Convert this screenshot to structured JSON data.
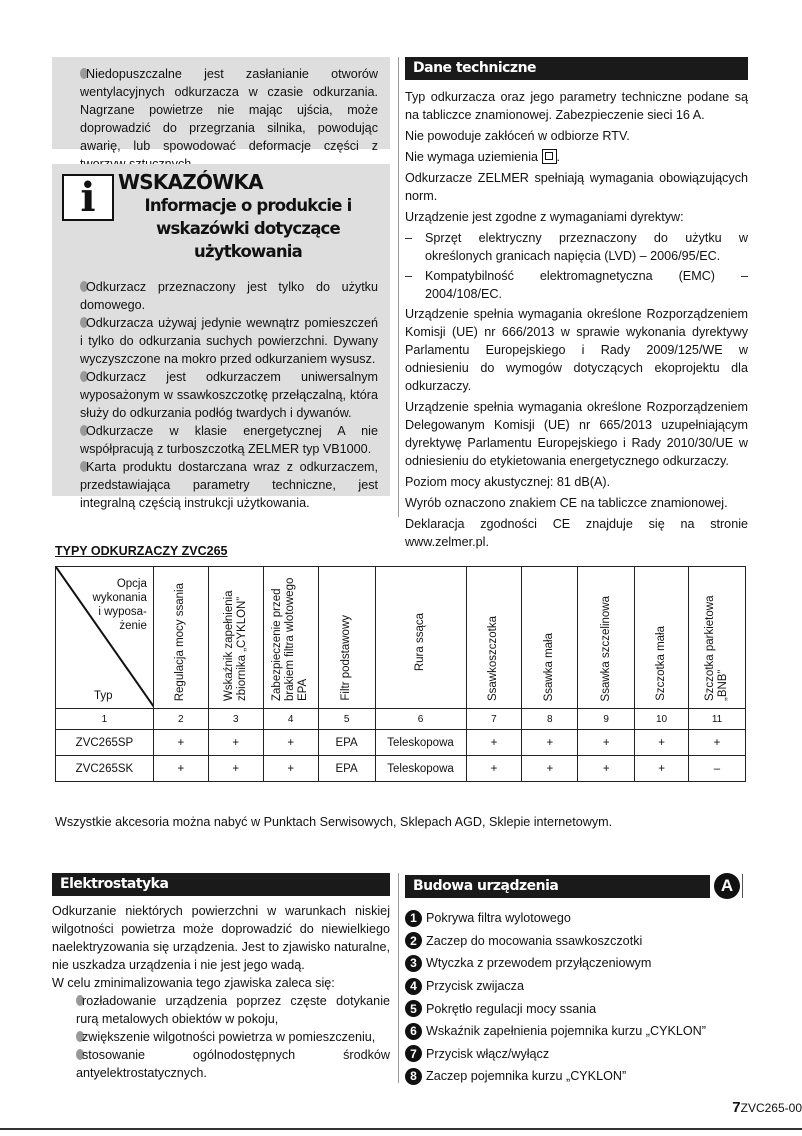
{
  "warning_box": {
    "text": "Niedopuszczalne jest zasłanianie otworów wentylacyjnych odkurzacza w czasie odkurzania. Nagrzane powietrze nie mając ujścia, może doprowadzić do przegrzania silnika, powodując awarię, lub spowodować deformacje części z tworzyw sztucznych."
  },
  "tip_box": {
    "icon_letter": "i",
    "title": "WSKAZÓWKA",
    "subtitle": "Informacje o produkcie i wskazówki dotyczące użytkowania",
    "items": [
      "Odkurzacz przeznaczony jest tylko do użytku domowego.",
      "Odkurzacza używaj jedynie wewnątrz pomieszczeń i tylko do odkurzania suchych powierzchni. Dywany wyczyszczone na mokro przed odkurzaniem wysusz.",
      "Odkurzacz jest odkurzaczem uniwersalnym wyposażonym w ssawkoszczotkę przełączalną, która służy do odkurzania podłóg twardych i dywanów.",
      "Odkurzacze w klasie energetycznej A nie współpracują z turboszczotką ZELMER typ VB1000.",
      "Karta produktu dostarczana wraz z odkurzaczem, przedstawiająca parametry techniczne, jest integralną częścią instrukcji użytkowania."
    ]
  },
  "tech": {
    "title": "Dane techniczne",
    "p1": "Typ odkurzacza oraz jego parametry techniczne podane są na tabliczce znamionowej. Zabezpieczenie sieci 16 A.",
    "p2": "Nie powoduje zakłóceń w odbiorze RTV.",
    "p3": "Nie wymaga uziemienia",
    "p4": "Odkurzacze ZELMER spełniają wymagania obowiązujących norm.",
    "p5": "Urządzenie jest zgodne z wymaganiami dyrektyw:",
    "list": [
      "Sprzęt elektryczny przeznaczony do użytku w określonych granicach napięcia (LVD) – 2006/95/EC.",
      "Kompatybilność elektromagnetyczna (EMC) – 2004/108/EC."
    ],
    "p6": "Urządzenie spełnia wymagania określone Rozporządzeniem Komisji (UE) nr 666/2013 w sprawie wykonania dyrektywy Parlamentu Europejskiego i Rady 2009/125/WE w odniesieniu do wymogów dotyczących ekoprojektu dla odkurzaczy.",
    "p7": "Urządzenie spełnia wymagania określone Rozporządzeniem Delegowanym Komisji (UE) nr 665/2013 uzupełniającym dyrektywę Parlamentu Europejskiego i Rady 2010/30/UE w odniesieniu do etykietowania energetycznego odkurzaczy.",
    "p8": "Poziom mocy akustycznej: 81 dB(A).",
    "p9": "Wyrób oznaczono znakiem CE na tabliczce znamionowej.",
    "p10": "Deklaracja zgodności CE znajduje się na stronie www.zelmer.pl."
  },
  "types": {
    "title": "TYPY ODKURZACZY ZVC265",
    "corner_top": "Opcja wykonania i wyposa-żenie",
    "corner_bottom": "Typ",
    "headers": [
      "Regulacja mocy ssania",
      "Wskaźnik zapełnienia zbiornika „CYKLON”",
      "Zabezpieczenie przed brakiem filtra wlotowego EPA",
      "Filtr podstawowy",
      "Rura ssąca",
      "Ssawkoszczotka",
      "Ssawka mała",
      "Ssawka szczelinowa",
      "Szczotka mała",
      "Szczotka parkietowa „BNB”"
    ],
    "numbers": [
      "1",
      "2",
      "3",
      "4",
      "5",
      "6",
      "7",
      "8",
      "9",
      "10",
      "11"
    ],
    "rows": [
      [
        "ZVC265SP",
        "+",
        "+",
        "+",
        "EPA",
        "Teleskopowa",
        "+",
        "+",
        "+",
        "+",
        "+"
      ],
      [
        "ZVC265SK",
        "+",
        "+",
        "+",
        "EPA",
        "Teleskopowa",
        "+",
        "+",
        "+",
        "+",
        "–"
      ]
    ],
    "note": "Wszystkie akcesoria można nabyć w Punktach Serwisowych, Sklepach AGD, Sklepie internetowym."
  },
  "electro": {
    "title": "Elektrostatyka",
    "p1": "Odkurzanie niektórych powierzchni w warunkach niskiej wilgotności powietrza może doprowadzić do niewielkiego naelektryzowania się urządzenia. Jest to zjawisko naturalne, nie uszkadza urządzenia i nie jest jego wadą.",
    "p2": "W celu zminimalizowania tego zjawiska zaleca się:",
    "items": [
      "rozładowanie urządzenia poprzez częste dotykanie rurą metalowych obiektów w pokoju,",
      "zwiększenie wilgotności powietrza w pomieszczeniu,",
      "stosowanie ogólnodostępnych środków antyelektrostatycznych."
    ]
  },
  "build": {
    "title": "Budowa urządzenia",
    "badge": "A",
    "items": [
      {
        "n": "1",
        "t": "Pokrywa filtra wylotowego"
      },
      {
        "n": "2",
        "t": "Zaczep do mocowania ssawkoszczotki"
      },
      {
        "n": "3",
        "t": "Wtyczka z przewodem przyłączeniowym"
      },
      {
        "n": "4",
        "t": "Przycisk zwijacza"
      },
      {
        "n": "5",
        "t": "Pokrętło regulacji mocy ssania"
      },
      {
        "n": "6",
        "t": "Wskaźnik zapełnienia pojemnika kurzu „CYKLON”"
      },
      {
        "n": "7",
        "t": "Przycisk włącz/wyłącz"
      },
      {
        "n": "8",
        "t": "Zaczep pojemnika kurzu „CYKLON”"
      }
    ]
  },
  "footer": {
    "page": "7",
    "code": "ZVC265-00"
  }
}
